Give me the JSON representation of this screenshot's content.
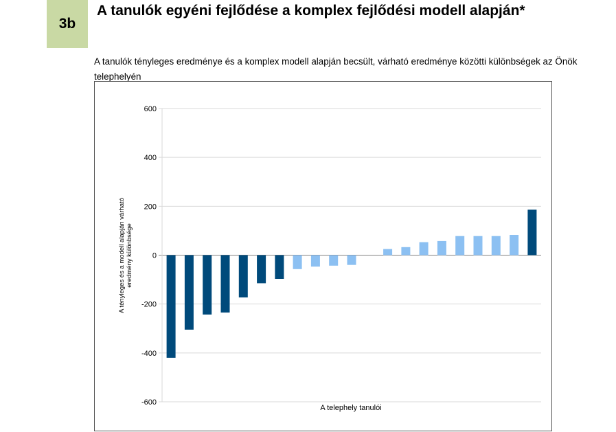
{
  "section": {
    "badge": "3b",
    "title": "A tanulók egyéni fejlődése a komplex fejlődési modell alapján*"
  },
  "caption": "A tanulók tényleges eredménye és a komplex modell alapján becsült, várható eredménye közötti különbségek az Önök telephelyén",
  "colors": {
    "dark": "#004a7b",
    "light": "#8cc0f2",
    "grid": "#d9d9d9",
    "zero_line": "#808080",
    "badge": "#c9d9a4"
  },
  "chart_data": {
    "type": "bar",
    "title": "",
    "xlabel": "A telephely tanulói",
    "ylabel": "A tényleges és a modell alapján várható eredmény különbsége",
    "ylim": [
      -600,
      600
    ],
    "yticks": [
      "600",
      "400",
      "200",
      "0",
      "-200",
      "-400",
      "-600"
    ],
    "grid": true,
    "values": [
      -420,
      -305,
      -243,
      -235,
      -173,
      -115,
      -97,
      -57,
      -47,
      -43,
      -40,
      0,
      25,
      33,
      53,
      58,
      78,
      78,
      78,
      83,
      186
    ],
    "shades": [
      "dark",
      "dark",
      "dark",
      "dark",
      "dark",
      "dark",
      "dark",
      "light",
      "light",
      "light",
      "light",
      "light",
      "light",
      "light",
      "light",
      "light",
      "light",
      "light",
      "light",
      "light",
      "dark"
    ]
  }
}
